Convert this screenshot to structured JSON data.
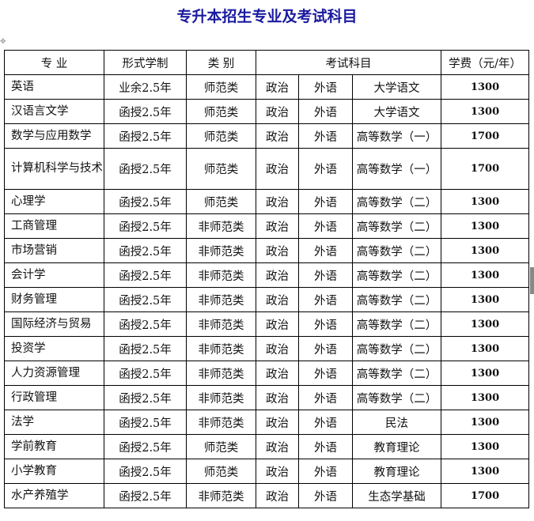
{
  "title": "专升本招生专业及考试科目",
  "headers": [
    "专 业",
    "形式学制",
    "类 别",
    "考试科目",
    "学费（元/年）"
  ],
  "rows": [
    [
      "英语",
      "业余2.5年",
      "师范类",
      "政治",
      "外语",
      "大学语文",
      "1300"
    ],
    [
      "汉语言文学",
      "函授2.5年",
      "师范类",
      "政治",
      "外语",
      "大学语文",
      "1300"
    ],
    [
      "数学与应用数学",
      "函授2.5年",
      "师范类",
      "政治",
      "外语",
      "高等数学（一）",
      "1700"
    ],
    [
      "计算机科学与技术",
      "函授2.5年",
      "师范类",
      "政治",
      "外语",
      "高等数学（一）",
      "1700"
    ],
    [
      "心理学",
      "函授2.5年",
      "师范类",
      "政治",
      "外语",
      "高等数学（二）",
      "1300"
    ],
    [
      "工商管理",
      "函授2.5年",
      "非师范类",
      "政治",
      "外语",
      "高等数学（二）",
      "1300"
    ],
    [
      "市场营销",
      "函授2.5年",
      "非师范类",
      "政治",
      "外语",
      "高等数学（二）",
      "1300"
    ],
    [
      "会计学",
      "函授2.5年",
      "非师范类",
      "政治",
      "外语",
      "高等数学（二）",
      "1300"
    ],
    [
      "财务管理",
      "函授2.5年",
      "非师范类",
      "政治",
      "外语",
      "高等数学（二）",
      "1300"
    ],
    [
      "国际经济与贸易",
      "函授2.5年",
      "非师范类",
      "政治",
      "外语",
      "高等数学（二）",
      "1300"
    ],
    [
      "投资学",
      "函授2.5年",
      "非师范类",
      "政治",
      "外语",
      "高等数学（二）",
      "1300"
    ],
    [
      "人力资源管理",
      "函授2.5年",
      "非师范类",
      "政治",
      "外语",
      "高等数学（二）",
      "1300"
    ],
    [
      "行政管理",
      "函授2.5年",
      "非师范类",
      "政治",
      "外语",
      "高等数学（二）",
      "1300"
    ],
    [
      "法学",
      "函授2.5年",
      "非师范类",
      "政治",
      "外语",
      "民法",
      "1300"
    ],
    [
      "学前教育",
      "函授2.5年",
      "师范类",
      "政治",
      "外语",
      "教育理论",
      "1300"
    ],
    [
      "小学教育",
      "函授2.5年",
      "师范类",
      "政治",
      "外语",
      "教育理论",
      "1300"
    ],
    [
      "水产养殖学",
      "函授2.5年",
      "非师范类",
      "政治",
      "外语",
      "生态学基础",
      "1700"
    ]
  ]
}
